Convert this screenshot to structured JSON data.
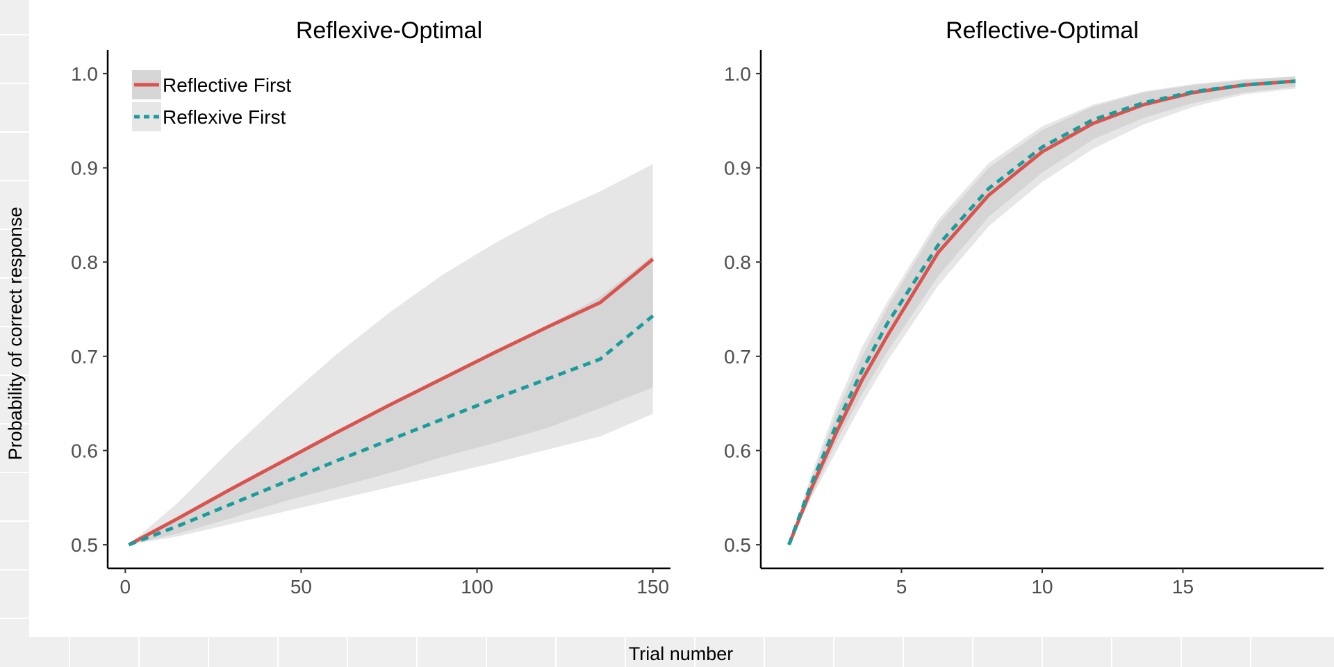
{
  "ylabel": "Probability of correct response",
  "xlabel": "Trial number",
  "legend": {
    "placement": "top-left",
    "entries": [
      "Reflective First",
      "Reflexive First"
    ]
  },
  "colors": {
    "reflective": "#d9534f",
    "reflexive": "#1a9c9a",
    "ribbon": "#b0b0b0",
    "background": "#efefef"
  },
  "chart_data": [
    {
      "type": "line",
      "title": "Reflexive-Optimal",
      "xlim": [
        -5,
        155
      ],
      "ylim": [
        0.475,
        1.025
      ],
      "xticks": [
        0,
        50,
        100,
        150
      ],
      "yticks": [
        0.5,
        0.6,
        0.7,
        0.8,
        0.9,
        1.0
      ],
      "grid": false,
      "series": [
        {
          "name": "Reflective First",
          "style": "solid",
          "x": [
            1,
            15,
            30,
            45,
            60,
            75,
            90,
            105,
            120,
            135,
            150
          ],
          "y": [
            0.5,
            0.528,
            0.559,
            0.589,
            0.619,
            0.648,
            0.676,
            0.704,
            0.731,
            0.757,
            0.803
          ],
          "lower": [
            0.5,
            0.512,
            0.528,
            0.546,
            0.561,
            0.576,
            0.593,
            0.608,
            0.624,
            0.645,
            0.667
          ],
          "upper": [
            0.5,
            0.527,
            0.557,
            0.588,
            0.619,
            0.648,
            0.677,
            0.706,
            0.733,
            0.763,
            0.807
          ]
        },
        {
          "name": "Reflexive First",
          "style": "dashed",
          "x": [
            1,
            15,
            30,
            45,
            60,
            75,
            90,
            105,
            120,
            135,
            150
          ],
          "y": [
            0.5,
            0.52,
            0.543,
            0.566,
            0.589,
            0.611,
            0.633,
            0.655,
            0.676,
            0.697,
            0.743
          ],
          "lower": [
            0.5,
            0.509,
            0.522,
            0.535,
            0.548,
            0.561,
            0.574,
            0.587,
            0.601,
            0.615,
            0.639
          ],
          "upper": [
            0.5,
            0.545,
            0.601,
            0.653,
            0.702,
            0.746,
            0.786,
            0.82,
            0.85,
            0.875,
            0.904
          ]
        }
      ]
    },
    {
      "type": "line",
      "title": "Reflective-Optimal",
      "xlim": [
        0,
        20
      ],
      "ylim": [
        0.475,
        1.025
      ],
      "xticks": [
        5,
        10,
        15
      ],
      "yticks": [
        0.5,
        0.6,
        0.7,
        0.8,
        0.9,
        1.0
      ],
      "grid": false,
      "series": [
        {
          "name": "Reflective First",
          "style": "solid",
          "x": [
            1,
            1.8,
            2.7,
            3.6,
            4.5,
            6.3,
            8.1,
            10,
            11.8,
            13.6,
            15.4,
            17.2,
            19
          ],
          "y": [
            0.5,
            0.56,
            0.62,
            0.675,
            0.722,
            0.81,
            0.871,
            0.917,
            0.947,
            0.967,
            0.98,
            0.988,
            0.992
          ],
          "lower": [
            0.5,
            0.55,
            0.6,
            0.65,
            0.695,
            0.775,
            0.838,
            0.885,
            0.92,
            0.946,
            0.965,
            0.978,
            0.984
          ],
          "upper": [
            0.5,
            0.57,
            0.64,
            0.7,
            0.752,
            0.84,
            0.9,
            0.94,
            0.965,
            0.98,
            0.988,
            0.993,
            0.997
          ]
        },
        {
          "name": "Reflexive First",
          "style": "dashed",
          "x": [
            1,
            1.8,
            2.7,
            3.6,
            4.5,
            6.3,
            8.1,
            10,
            11.8,
            13.6,
            15.4,
            17.2,
            19
          ],
          "y": [
            0.5,
            0.565,
            0.628,
            0.685,
            0.735,
            0.818,
            0.878,
            0.922,
            0.951,
            0.969,
            0.981,
            0.988,
            0.992
          ],
          "lower": [
            0.5,
            0.552,
            0.61,
            0.66,
            0.705,
            0.785,
            0.848,
            0.895,
            0.93,
            0.953,
            0.969,
            0.98,
            0.986
          ],
          "upper": [
            0.5,
            0.575,
            0.648,
            0.71,
            0.758,
            0.845,
            0.905,
            0.944,
            0.967,
            0.981,
            0.989,
            0.994,
            0.997
          ]
        }
      ]
    }
  ]
}
